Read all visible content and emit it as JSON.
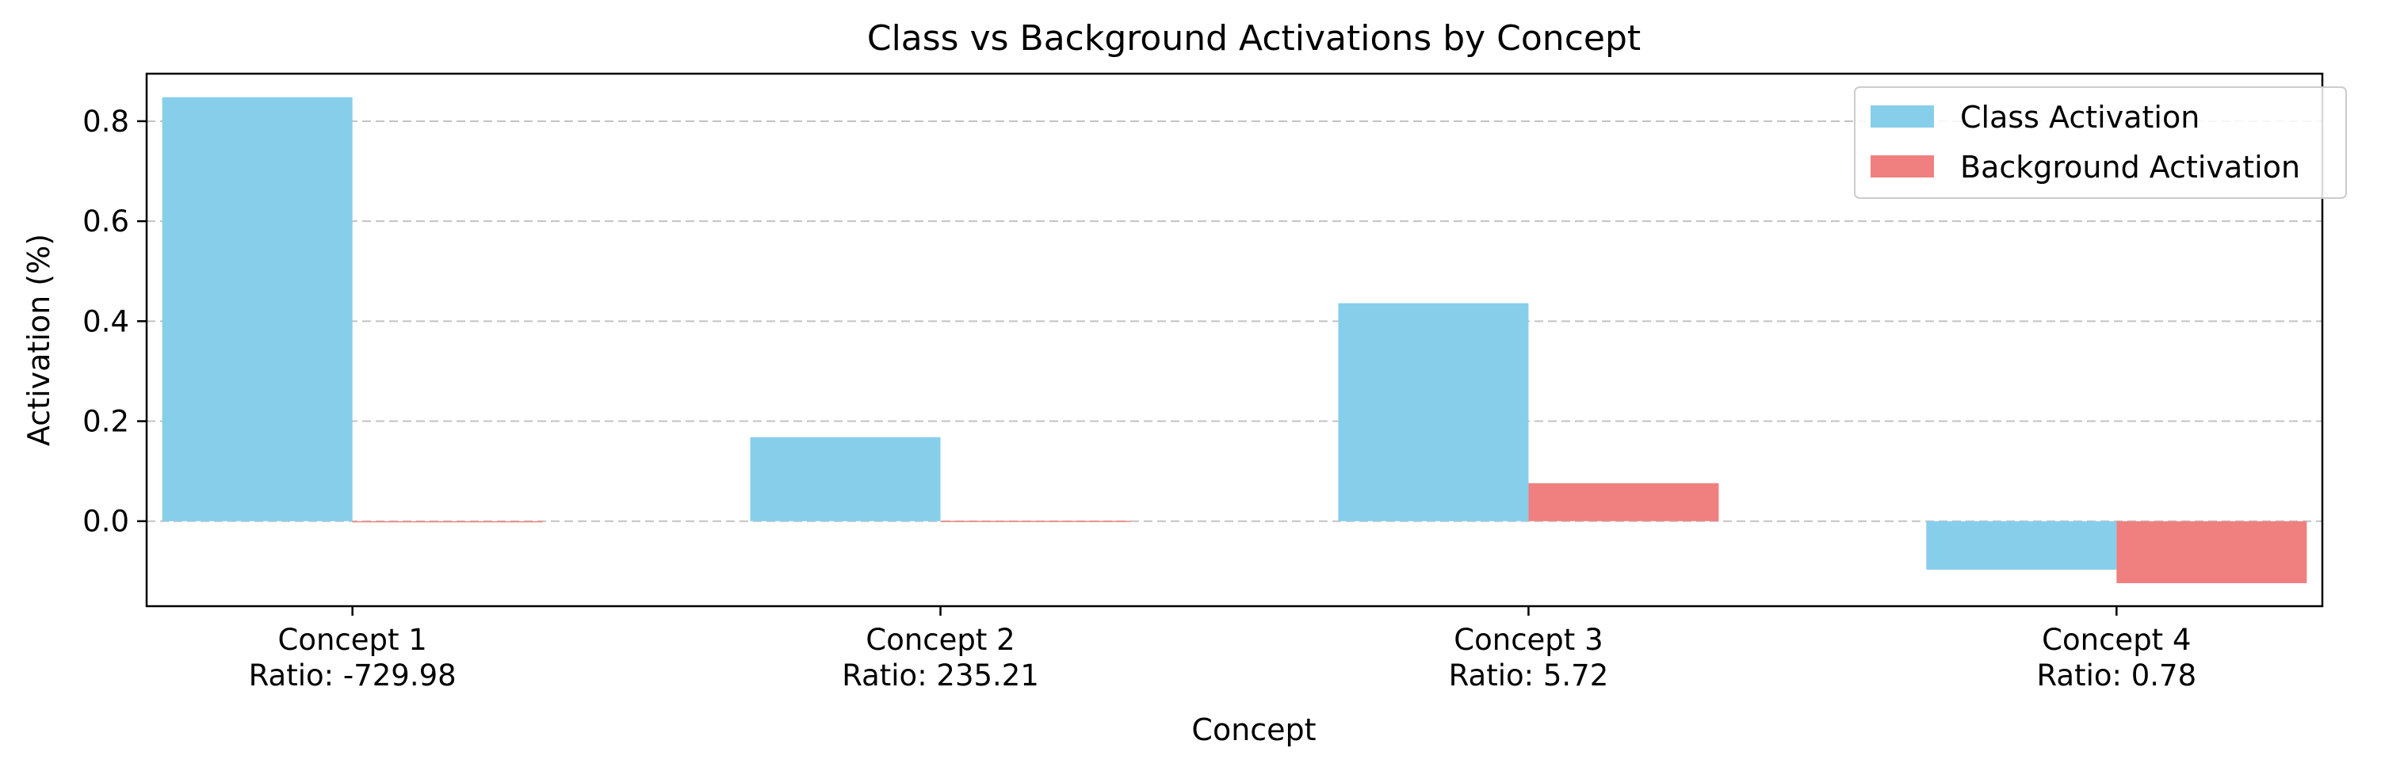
{
  "chart_data": {
    "type": "bar",
    "title": "Class vs Background Activations by Concept",
    "xlabel": "Concept",
    "ylabel": "Activation (%)",
    "categories": [
      "Concept 1",
      "Concept 2",
      "Concept 3",
      "Concept 4"
    ],
    "category_sublabels": [
      "Ratio: -729.98",
      "Ratio: 235.21",
      "Ratio: 5.72",
      "Ratio: 0.78"
    ],
    "series": [
      {
        "name": "Class Activation",
        "color": "#87ceeb",
        "values": [
          0.848,
          0.168,
          0.436,
          -0.097
        ]
      },
      {
        "name": "Background Activation",
        "color": "#f08080",
        "values": [
          -0.001,
          0.0007,
          0.076,
          -0.124
        ]
      }
    ],
    "ylim": [
      -0.17,
      0.895
    ],
    "yticks": [
      "0.0",
      "0.2",
      "0.4",
      "0.6",
      "0.8"
    ],
    "ytick_values": [
      0.0,
      0.2,
      0.4,
      0.6,
      0.8
    ],
    "grid": true,
    "legend_position": "top-right"
  }
}
